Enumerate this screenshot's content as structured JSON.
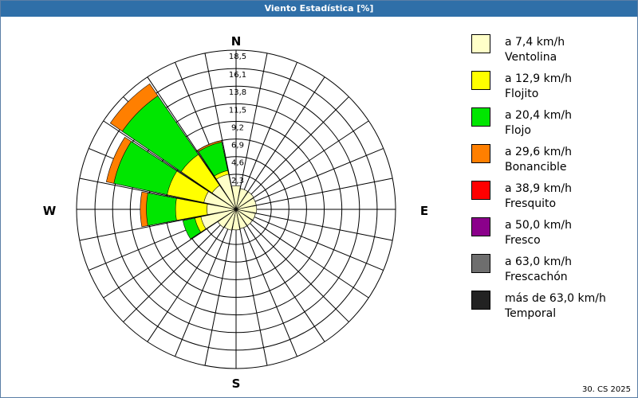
{
  "header": {
    "title": "Viento Estadística [%]"
  },
  "footer": {
    "text": "30. CS 2025"
  },
  "colors": {
    "titlebar": "#2f6fa8",
    "grid": "#000000",
    "bins": [
      "#ffffc8",
      "#ffff00",
      "#00e600",
      "#ff7f00",
      "#ff0000",
      "#8b008b",
      "#6e6e6e",
      "#222222"
    ]
  },
  "legend": [
    {
      "range": "a 7,4 km/h",
      "name": "Ventolina"
    },
    {
      "range": "a 12,9 km/h",
      "name": "Flojito"
    },
    {
      "range": "a 20,4 km/h",
      "name": "Flojo"
    },
    {
      "range": "a 29,6 km/h",
      "name": "Bonancible"
    },
    {
      "range": "a 38,9 km/h",
      "name": "Fresquito"
    },
    {
      "range": "a 50,0 km/h",
      "name": "Fresco"
    },
    {
      "range": "a 63,0 km/h",
      "name": "Frescachón"
    },
    {
      "range": "más de 63,0 km/h",
      "name": "Temporal"
    }
  ],
  "chart_data": {
    "type": "wind-rose",
    "title": "Viento Estadística [%]",
    "directions": [
      "N",
      "E",
      "S",
      "W"
    ],
    "radial_ticks": [
      "2,3",
      "4,6",
      "6,9",
      "9,2",
      "11,5",
      "13,8",
      "16,1",
      "18,5"
    ],
    "radial_tick_values": [
      2.3,
      4.6,
      6.9,
      9.2,
      11.5,
      13.8,
      16.1,
      18.5
    ],
    "radial_max": 18.5,
    "sector_count": 16,
    "series": [
      "Ventolina",
      "Flojito",
      "Flojo",
      "Bonancible",
      "Fresquito",
      "Fresco",
      "Frescachón",
      "Temporal"
    ],
    "sectors": [
      {
        "angle": 0,
        "cumulative": [
          0.8,
          0.8,
          0.8,
          0.8,
          0.8,
          0.8,
          0.8,
          0.8
        ]
      },
      {
        "angle": 22.5,
        "cumulative": [
          0.5,
          0.5,
          0.5,
          0.5,
          0.5,
          0.5,
          0.5,
          0.5
        ]
      },
      {
        "angle": 45,
        "cumulative": [
          0.5,
          0.5,
          0.5,
          0.5,
          0.5,
          0.5,
          0.5,
          0.5
        ]
      },
      {
        "angle": 67.5,
        "cumulative": [
          0.4,
          0.4,
          0.4,
          0.4,
          0.4,
          0.4,
          0.4,
          0.4
        ]
      },
      {
        "angle": 90,
        "cumulative": [
          0.4,
          0.4,
          0.4,
          0.4,
          0.4,
          0.4,
          0.4,
          0.4
        ]
      },
      {
        "angle": 112.5,
        "cumulative": [
          0.3,
          0.3,
          0.3,
          0.3,
          0.3,
          0.3,
          0.3,
          0.3
        ]
      },
      {
        "angle": 135,
        "cumulative": [
          0.3,
          0.3,
          0.3,
          0.3,
          0.3,
          0.3,
          0.3,
          0.3
        ]
      },
      {
        "angle": 157.5,
        "cumulative": [
          0.3,
          0.3,
          0.3,
          0.3,
          0.3,
          0.3,
          0.3,
          0.3
        ]
      },
      {
        "angle": 180,
        "cumulative": [
          0.4,
          0.4,
          0.4,
          0.4,
          0.4,
          0.4,
          0.4,
          0.4
        ]
      },
      {
        "angle": 202.5,
        "cumulative": [
          0.5,
          0.5,
          0.5,
          0.5,
          0.5,
          0.5,
          0.5,
          0.5
        ]
      },
      {
        "angle": 225,
        "cumulative": [
          0.6,
          0.6,
          0.6,
          0.6,
          0.6,
          0.6,
          0.6,
          0.6
        ]
      },
      {
        "angle": 247.5,
        "cumulative": [
          2.4,
          3.2,
          4.8,
          4.8,
          4.8,
          4.8,
          4.8,
          4.8
        ]
      },
      {
        "angle": 270,
        "cumulative": [
          1.5,
          5.6,
          9.4,
          10.2,
          10.2,
          10.2,
          10.2,
          10.2
        ]
      },
      {
        "angle": 292.5,
        "cumulative": [
          2.0,
          6.9,
          14.0,
          15.0,
          15.0,
          15.0,
          15.0,
          15.0
        ]
      },
      {
        "angle": 315,
        "cumulative": [
          1.5,
          6.4,
          15.7,
          17.6,
          17.6,
          17.6,
          17.6,
          17.6
        ]
      },
      {
        "angle": 337.5,
        "cumulative": [
          2.4,
          2.9,
          6.7,
          6.9,
          6.9,
          6.9,
          6.9,
          6.9
        ]
      }
    ]
  }
}
